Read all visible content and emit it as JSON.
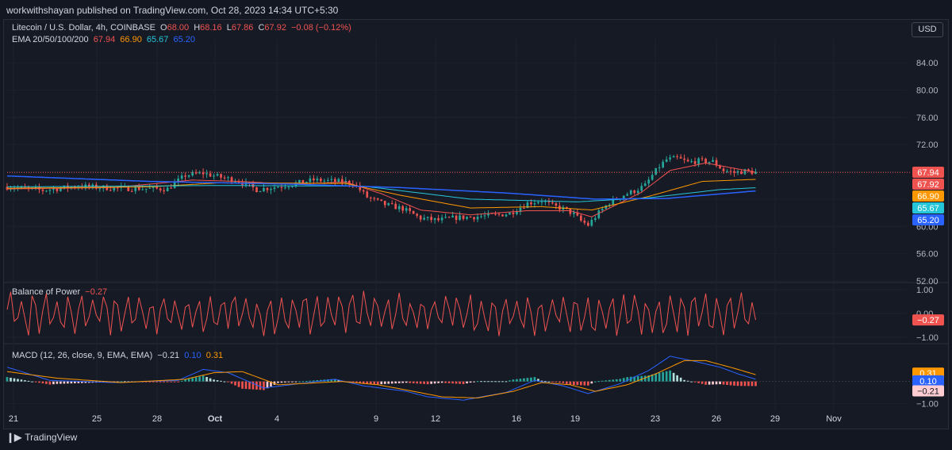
{
  "header": {
    "publisher": "workwithshayan published on TradingView.com, Oct 28, 2023 14:34 UTC+5:30"
  },
  "currency_button": "USD",
  "footer": {
    "brand": "TradingView"
  },
  "legend": {
    "symbol": "Litecoin / U.S. Dollar, 4h, COINBASE",
    "o_label": "O",
    "o": "68.00",
    "h_label": "H",
    "h": "68.16",
    "l_label": "L",
    "l": "67.86",
    "c_label": "C",
    "c": "67.92",
    "change": "−0.08 (−0.12%)",
    "ema_label": "EMA 20/50/100/200",
    "ema20": "67.94",
    "ema50": "66.90",
    "ema100": "65.67",
    "ema200": "65.20",
    "bop_label": "Balance of Power",
    "bop_value": "−0.27",
    "macd_label": "MACD (12, 26, close, 9, EMA, EMA)",
    "macd_hist": "−0.21",
    "macd_line": "0.10",
    "macd_signal": "0.31"
  },
  "colors": {
    "up": "#26a69a",
    "down": "#ef5350",
    "ema20": "#ef5350",
    "ema50": "#ff9800",
    "ema100": "#26c6da",
    "ema200": "#2962ff",
    "macd": "#2962ff",
    "signal": "#ff9800",
    "bop": "#ef5350",
    "grid": "#1e222d",
    "text": "#b2b5be"
  },
  "chart_data": [
    {
      "type": "candlestick",
      "title": "Litecoin / U.S. Dollar, 4h, COINBASE",
      "x_ticks": [
        "21",
        "25",
        "28",
        "Oct",
        "4",
        "9",
        "12",
        "16",
        "19",
        "23",
        "26",
        "29",
        "Nov"
      ],
      "y_ticks": [
        52.0,
        56.0,
        60.0,
        64.0,
        68.0,
        72.0,
        76.0,
        80.0,
        84.0
      ],
      "y_tick_labels": [
        "52.00",
        "56.00",
        "60.00",
        "",
        "",
        "72.00",
        "76.00",
        "80.00",
        "84.00"
      ],
      "ylim": [
        52,
        87.5
      ],
      "last_price": 67.92,
      "price_labels": [
        {
          "label": "67.94",
          "value": 67.94,
          "color": "#ef5350"
        },
        {
          "label": "67.92",
          "value": 67.92,
          "color": "#ef5350"
        },
        {
          "label": "66.90",
          "value": 66.9,
          "color": "#ff9800"
        },
        {
          "label": "65.67",
          "value": 65.67,
          "color": "#26c6da"
        },
        {
          "label": "65.20",
          "value": 65.2,
          "color": "#2962ff"
        }
      ],
      "close_path": [
        [
          0,
          65.8
        ],
        [
          10,
          65.3
        ],
        [
          20,
          65.9
        ],
        [
          30,
          65.6
        ],
        [
          45,
          65.5
        ],
        [
          50,
          67.5
        ],
        [
          55,
          67.8
        ],
        [
          60,
          67.2
        ],
        [
          65,
          66.7
        ],
        [
          70,
          65.4
        ],
        [
          78,
          66.0
        ],
        [
          86,
          66.8
        ],
        [
          92,
          66.6
        ],
        [
          97,
          66.4
        ],
        [
          101,
          64.3
        ],
        [
          106,
          63.2
        ],
        [
          111,
          62.6
        ],
        [
          116,
          61.2
        ],
        [
          121,
          60.9
        ],
        [
          126,
          61.3
        ],
        [
          131,
          61.4
        ],
        [
          136,
          61.6
        ],
        [
          141,
          61.9
        ],
        [
          146,
          63.4
        ],
        [
          150,
          63.8
        ],
        [
          153,
          63.0
        ],
        [
          156,
          62.6
        ],
        [
          159,
          61.8
        ],
        [
          161,
          60.8
        ],
        [
          163,
          60.2
        ],
        [
          166,
          62.0
        ],
        [
          169,
          63.5
        ],
        [
          173,
          64.6
        ],
        [
          176,
          65.2
        ],
        [
          179,
          66.0
        ],
        [
          181,
          67.5
        ],
        [
          183,
          68.8
        ],
        [
          185,
          69.8
        ],
        [
          188,
          70.0
        ],
        [
          191,
          69.4
        ],
        [
          194,
          69.6
        ],
        [
          198,
          69.5
        ],
        [
          201,
          68.2
        ],
        [
          204,
          67.9
        ],
        [
          207,
          68.1
        ],
        [
          210,
          67.92
        ]
      ],
      "series": [
        {
          "name": "EMA 20",
          "color": "#ef5350",
          "points": [
            [
              0,
              65.5
            ],
            [
              30,
              65.7
            ],
            [
              52,
              66.8
            ],
            [
              65,
              66.6
            ],
            [
              80,
              66.2
            ],
            [
              95,
              66.5
            ],
            [
              105,
              64.8
            ],
            [
              116,
              62.4
            ],
            [
              130,
              61.7
            ],
            [
              146,
              62.3
            ],
            [
              158,
              62.3
            ],
            [
              164,
              61.4
            ],
            [
              178,
              65.0
            ],
            [
              186,
              68.2
            ],
            [
              196,
              69.3
            ],
            [
              210,
              67.94
            ]
          ]
        },
        {
          "name": "EMA 50",
          "color": "#ff9800",
          "points": [
            [
              0,
              65.6
            ],
            [
              40,
              65.8
            ],
            [
              60,
              66.4
            ],
            [
              95,
              66.3
            ],
            [
              110,
              64.6
            ],
            [
              130,
              62.7
            ],
            [
              150,
              62.9
            ],
            [
              164,
              62.4
            ],
            [
              180,
              64.4
            ],
            [
              195,
              66.6
            ],
            [
              210,
              66.9
            ]
          ]
        },
        {
          "name": "EMA 100",
          "color": "#26c6da",
          "points": [
            [
              0,
              65.8
            ],
            [
              60,
              66.0
            ],
            [
              100,
              65.9
            ],
            [
              130,
              64.0
            ],
            [
              160,
              63.6
            ],
            [
              180,
              64.2
            ],
            [
              200,
              65.4
            ],
            [
              210,
              65.67
            ]
          ]
        },
        {
          "name": "EMA 200",
          "color": "#2962ff",
          "points": [
            [
              0,
              67.4
            ],
            [
              40,
              66.6
            ],
            [
              80,
              66.2
            ],
            [
              110,
              65.7
            ],
            [
              140,
              64.9
            ],
            [
              165,
              64.0
            ],
            [
              185,
              64.1
            ],
            [
              210,
              65.2
            ]
          ]
        }
      ]
    },
    {
      "type": "line",
      "title": "Balance of Power",
      "y_ticks": [
        1.0,
        0.0,
        -1.0
      ],
      "y_tick_labels": [
        "1.00",
        "0.00",
        "−1.00"
      ],
      "ylim": [
        -1.2,
        1.2
      ],
      "last_value": -0.27
    },
    {
      "type": "line",
      "title": "MACD (12, 26, close, 9, EMA, EMA)",
      "y_ticks": [
        -1.0
      ],
      "y_tick_labels": [
        "−1.00"
      ],
      "ylim": [
        -1.35,
        1.65
      ],
      "last_values": {
        "macd": 0.1,
        "signal": 0.31,
        "histogram": -0.21
      },
      "macd_path": [
        [
          0,
          0.65
        ],
        [
          12,
          0.05
        ],
        [
          30,
          -0.05
        ],
        [
          48,
          0.05
        ],
        [
          55,
          0.55
        ],
        [
          62,
          0.4
        ],
        [
          72,
          -0.3
        ],
        [
          92,
          0.1
        ],
        [
          100,
          -0.2
        ],
        [
          112,
          -0.45
        ],
        [
          118,
          -0.7
        ],
        [
          128,
          -0.85
        ],
        [
          140,
          -0.5
        ],
        [
          148,
          0.05
        ],
        [
          156,
          -0.2
        ],
        [
          163,
          -0.55
        ],
        [
          172,
          -0.1
        ],
        [
          180,
          0.5
        ],
        [
          186,
          1.15
        ],
        [
          192,
          0.95
        ],
        [
          200,
          0.65
        ],
        [
          205,
          0.35
        ],
        [
          210,
          0.1
        ]
      ],
      "signal_path": [
        [
          0,
          0.45
        ],
        [
          14,
          0.15
        ],
        [
          32,
          -0.05
        ],
        [
          50,
          0.1
        ],
        [
          58,
          0.4
        ],
        [
          66,
          0.45
        ],
        [
          76,
          -0.15
        ],
        [
          94,
          0.0
        ],
        [
          104,
          -0.15
        ],
        [
          114,
          -0.45
        ],
        [
          122,
          -0.7
        ],
        [
          132,
          -0.75
        ],
        [
          142,
          -0.45
        ],
        [
          150,
          -0.05
        ],
        [
          158,
          -0.15
        ],
        [
          165,
          -0.45
        ],
        [
          174,
          -0.15
        ],
        [
          182,
          0.35
        ],
        [
          190,
          0.95
        ],
        [
          196,
          0.95
        ],
        [
          204,
          0.6
        ],
        [
          210,
          0.31
        ]
      ]
    }
  ]
}
